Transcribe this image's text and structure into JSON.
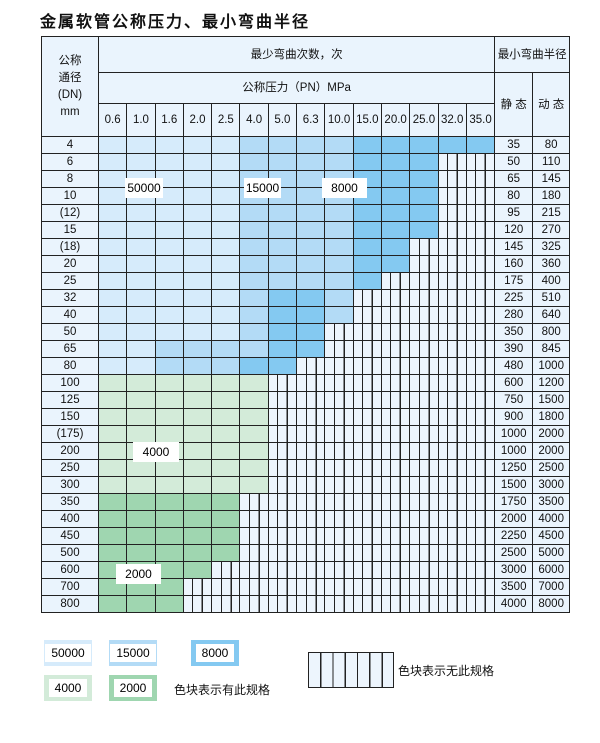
{
  "title": "金属软管公称压力、最小弯曲半径",
  "header": {
    "dn": [
      "公称",
      "通径",
      "(DN)",
      "mm"
    ],
    "cycles": "最少弯曲次数，次",
    "pressure": "公称压力（PN）MPa",
    "radius": "最小弯曲半径",
    "static": "静 态",
    "dynamic": "动 态",
    "pressures": [
      "0.6",
      "1.0",
      "1.6",
      "2.0",
      "2.5",
      "4.0",
      "5.0",
      "6.3",
      "10.0",
      "15.0",
      "20.0",
      "25.0",
      "32.0",
      "35.0"
    ]
  },
  "rows": [
    {
      "dn": "4",
      "static": "35",
      "dynamic": "80",
      "tiers": "aaaaabbbbccccc"
    },
    {
      "dn": "6",
      "static": "50",
      "dynamic": "110",
      "tiers": "aaaaabbbbcccxx"
    },
    {
      "dn": "8",
      "static": "65",
      "dynamic": "145",
      "tiers": "aaaaabbbbcccxx"
    },
    {
      "dn": "10",
      "static": "80",
      "dynamic": "180",
      "tiers": "aaaaabbbbcccxx"
    },
    {
      "dn": "(12)",
      "static": "95",
      "dynamic": "215",
      "tiers": "aaaaabbbbcccxx"
    },
    {
      "dn": "15",
      "static": "120",
      "dynamic": "270",
      "tiers": "aaaaabbbbcccxx"
    },
    {
      "dn": "(18)",
      "static": "145",
      "dynamic": "325",
      "tiers": "aaaaabbbbccxxx"
    },
    {
      "dn": "20",
      "static": "160",
      "dynamic": "360",
      "tiers": "aaaaabbbbccxxx"
    },
    {
      "dn": "25",
      "static": "175",
      "dynamic": "400",
      "tiers": "aaaaabbbbcxxxx"
    },
    {
      "dn": "32",
      "static": "225",
      "dynamic": "510",
      "tiers": "aaaaabccbxxxxx"
    },
    {
      "dn": "40",
      "static": "280",
      "dynamic": "640",
      "tiers": "aaaaabccbxxxxx"
    },
    {
      "dn": "50",
      "static": "350",
      "dynamic": "800",
      "tiers": "aaaaabccxxxxxx"
    },
    {
      "dn": "65",
      "static": "390",
      "dynamic": "845",
      "tiers": "aabbbbccxxxxxx"
    },
    {
      "dn": "80",
      "static": "480",
      "dynamic": "1000",
      "tiers": "aabbbccxxxxxxx"
    },
    {
      "dn": "100",
      "static": "600",
      "dynamic": "1200",
      "tiers": "ddddddxxxxxxxx"
    },
    {
      "dn": "125",
      "static": "750",
      "dynamic": "1500",
      "tiers": "ddddddxxxxxxxx"
    },
    {
      "dn": "150",
      "static": "900",
      "dynamic": "1800",
      "tiers": "ddddddxxxxxxxx"
    },
    {
      "dn": "(175)",
      "static": "1000",
      "dynamic": "2000",
      "tiers": "ddddddxxxxxxxx"
    },
    {
      "dn": "200",
      "static": "1000",
      "dynamic": "2000",
      "tiers": "ddddddxxxxxxxx"
    },
    {
      "dn": "250",
      "static": "1250",
      "dynamic": "2500",
      "tiers": "ddddddxxxxxxxx"
    },
    {
      "dn": "300",
      "static": "1500",
      "dynamic": "3000",
      "tiers": "ddddddxxxxxxxx"
    },
    {
      "dn": "350",
      "static": "1750",
      "dynamic": "3500",
      "tiers": "eeeeexxxxxxxxx"
    },
    {
      "dn": "400",
      "static": "2000",
      "dynamic": "4000",
      "tiers": "eeeeexxxxxxxxx"
    },
    {
      "dn": "450",
      "static": "2250",
      "dynamic": "4500",
      "tiers": "eeeeexxxxxxxxx"
    },
    {
      "dn": "500",
      "static": "2500",
      "dynamic": "5000",
      "tiers": "eeeeexxxxxxxxx"
    },
    {
      "dn": "600",
      "static": "3000",
      "dynamic": "6000",
      "tiers": "eeeexxxxxxxxxx"
    },
    {
      "dn": "700",
      "static": "3500",
      "dynamic": "7000",
      "tiers": "eeexxxxxxxxxxx"
    },
    {
      "dn": "800",
      "static": "4000",
      "dynamic": "8000",
      "tiers": "eeexxxxxxxxxxx"
    }
  ],
  "region_labels": {
    "a": "50000",
    "b": "15000",
    "c": "8000",
    "d": "4000",
    "e": "2000"
  },
  "legend": {
    "available": "色块表示有此规格",
    "unavailable": "色块表示无此规格"
  },
  "colors": {
    "a": "#d6ebfb",
    "b": "#b3dbf6",
    "c": "#84c9f1",
    "d": "#d3ebd9",
    "e": "#9fd6b0",
    "none": "#edf5fd"
  }
}
